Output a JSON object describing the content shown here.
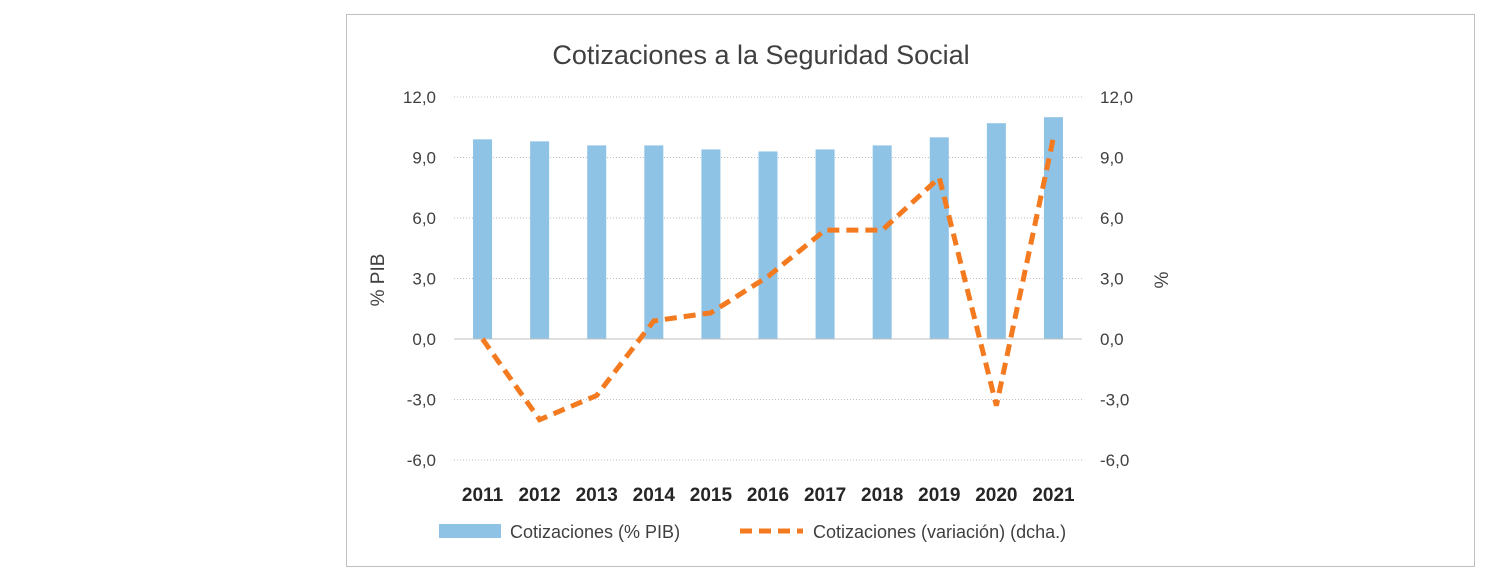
{
  "chart_data": {
    "type": "bar",
    "title": "Cotizaciones a la Seguridad Social",
    "categories": [
      "2011",
      "2012",
      "2013",
      "2014",
      "2015",
      "2016",
      "2017",
      "2018",
      "2019",
      "2020",
      "2021"
    ],
    "series": [
      {
        "name": "Cotizaciones (% PIB)",
        "type": "bar",
        "axis": "left",
        "color": "#8ec3e6",
        "values": [
          9.9,
          9.8,
          9.6,
          9.6,
          9.4,
          9.3,
          9.4,
          9.6,
          10.0,
          10.7,
          11.0
        ]
      },
      {
        "name": "Cotizaciones (variación) (dcha.)",
        "type": "line",
        "style": "dashed",
        "axis": "right",
        "color": "#f47a20",
        "values": [
          0.0,
          -4.0,
          -2.8,
          0.9,
          1.3,
          3.1,
          5.4,
          5.4,
          8.0,
          -3.3,
          10.0
        ]
      }
    ],
    "y_left": {
      "label": "% PIB",
      "ylim": [
        -6,
        12
      ],
      "ticks": [
        "-6,0",
        "-3,0",
        "0,0",
        "3,0",
        "6,0",
        "9,0",
        "12,0"
      ]
    },
    "y_right": {
      "label": "%",
      "ylim": [
        -6,
        12
      ],
      "ticks": [
        "-6,0",
        "-3,0",
        "0,0",
        "3,0",
        "6,0",
        "9,0",
        "12,0"
      ]
    },
    "grid": true,
    "legend_position": "bottom"
  }
}
